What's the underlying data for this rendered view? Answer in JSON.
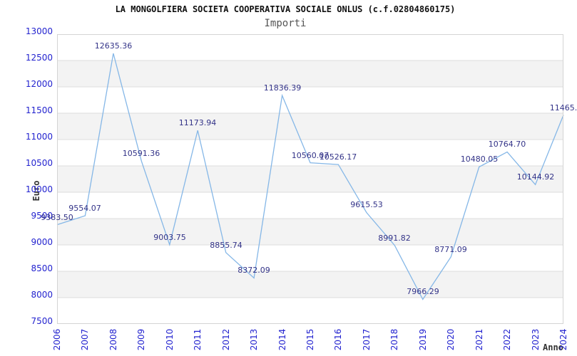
{
  "header": {
    "title": "LA MONGOLFIERA SOCIETA COOPERATIVA SOCIALE ONLUS (c.f.02804860175)",
    "subtitle": "Importi"
  },
  "chart_data": {
    "type": "line",
    "title": "LA MONGOLFIERA SOCIETA COOPERATIVA SOCIALE ONLUS (c.f.02804860175)",
    "subtitle": "Importi",
    "xlabel": "Anno",
    "ylabel": "Euro",
    "categories": [
      "2006",
      "2007",
      "2008",
      "2009",
      "2010",
      "2011",
      "2012",
      "2013",
      "2014",
      "2015",
      "2016",
      "2017",
      "2018",
      "2019",
      "2020",
      "2021",
      "2022",
      "2023",
      "2024"
    ],
    "series": [
      {
        "name": "Importi",
        "values": [
          9383.5,
          9554.07,
          12635.36,
          10591.36,
          9003.75,
          11173.94,
          8855.74,
          8372.09,
          11836.39,
          10560.07,
          10526.17,
          9615.53,
          8991.82,
          7966.29,
          8771.09,
          10480.05,
          10764.7,
          10144.92,
          11465
        ],
        "point_labels": [
          "9383.50",
          "9554.07",
          "12635.36",
          "10591.36",
          "9003.75",
          "11173.94",
          "8855.74",
          "8372.09",
          "11836.39",
          "10560.07",
          "10526.17",
          "9615.53",
          "8991.82",
          "7966.29",
          "8771.09",
          "10480.05",
          "10764.70",
          "10144.92",
          "11465."
        ]
      }
    ],
    "ylim": [
      7500,
      13000
    ],
    "yticks": [
      7500,
      8000,
      8500,
      9000,
      9500,
      10000,
      10500,
      11000,
      11500,
      12000,
      12500,
      13000
    ],
    "gray_bands": [
      [
        8000,
        8500
      ],
      [
        9000,
        9500
      ],
      [
        10000,
        10500
      ],
      [
        11000,
        11500
      ],
      [
        12000,
        12500
      ]
    ],
    "grid": "horizontal gridlines every 500, alternating shaded bands",
    "legend": "none"
  },
  "colors": {
    "line": "#85b7e7",
    "data_label": "#333388",
    "axis_tick": "#2323cf",
    "band_gray": "#f3f3f3",
    "gridline": "#dcdcdc",
    "plot_border": "#d4d4d4",
    "title": "#111111",
    "subtitle": "#555555",
    "axis_title": "#333333"
  }
}
